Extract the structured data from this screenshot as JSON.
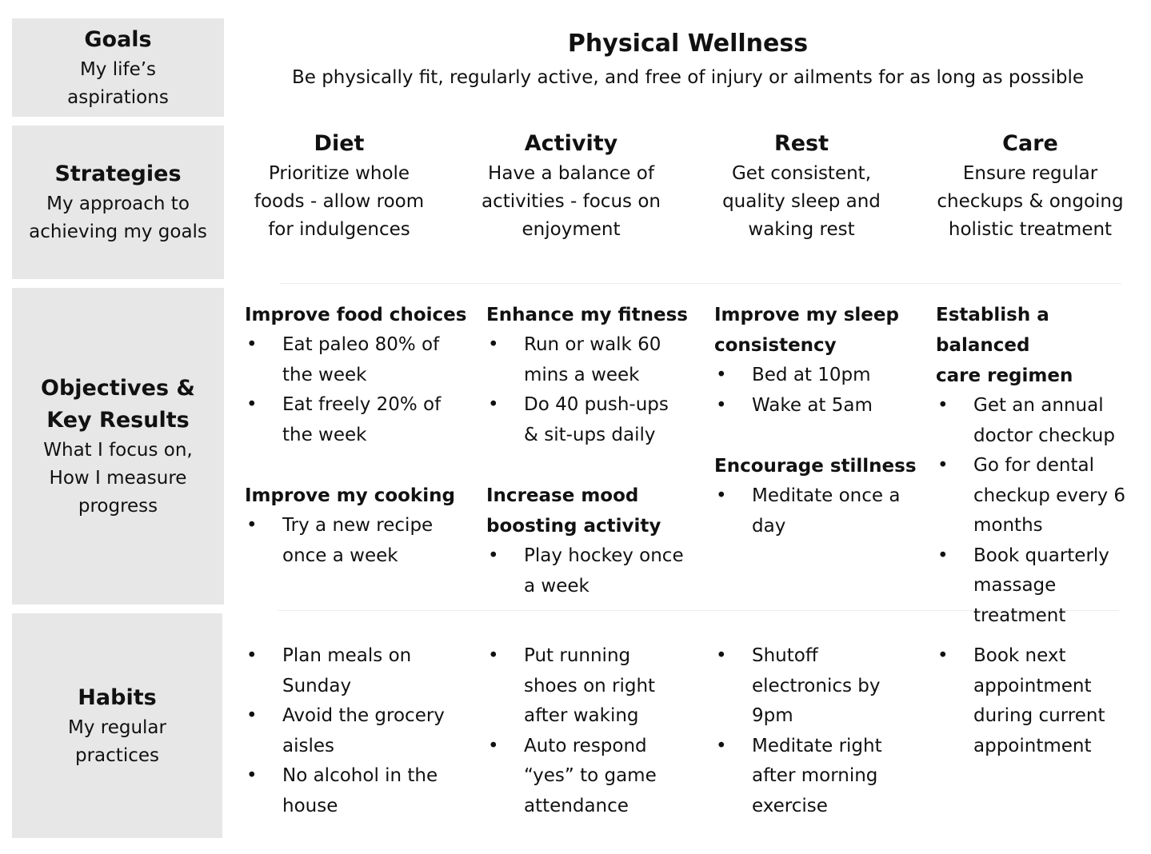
{
  "rows": {
    "goals": {
      "title": "Goals",
      "subtitle_lines": [
        "My life’s",
        "aspirations"
      ]
    },
    "strategies": {
      "title": "Strategies",
      "subtitle_lines": [
        "My approach to",
        "achieving my goals"
      ]
    },
    "okrs": {
      "title_lines": [
        "Objectives &",
        "Key Results"
      ],
      "subtitle_lines": [
        "What I focus on,",
        "How I measure",
        "progress"
      ]
    },
    "habits": {
      "title": "Habits",
      "subtitle_lines": [
        "My regular",
        "practices"
      ]
    }
  },
  "header": {
    "title": "Physical Wellness",
    "subtitle": "Be physically fit, regularly active, and free of injury or ailments for as long as possible"
  },
  "columns": [
    {
      "strategy_title": "Diet",
      "strategy_lines": [
        "Prioritize whole",
        "foods - allow room",
        "for indulgences"
      ],
      "objectives": [
        {
          "title_lines": [
            "Improve food choices"
          ],
          "key_results": [
            [
              "Eat paleo 80% of",
              "the week"
            ],
            [
              "Eat freely 20% of",
              "the week"
            ]
          ]
        },
        {
          "title_lines": [
            "Improve my cooking"
          ],
          "key_results": [
            [
              "Try a new recipe",
              "once a week"
            ]
          ]
        }
      ],
      "habits": [
        [
          "Plan meals on",
          "Sunday"
        ],
        [
          "Avoid the grocery",
          "aisles"
        ],
        [
          "No alcohol in the",
          "house"
        ]
      ]
    },
    {
      "strategy_title": "Activity",
      "strategy_lines": [
        "Have a balance of",
        "activities - focus on",
        "enjoyment"
      ],
      "objectives": [
        {
          "title_lines": [
            "Enhance my fitness"
          ],
          "key_results": [
            [
              "Run or walk 60",
              "mins a week"
            ],
            [
              "Do 40 push-ups",
              "& sit-ups daily"
            ]
          ]
        },
        {
          "title_lines": [
            "Increase mood",
            "boosting activity"
          ],
          "key_results": [
            [
              "Play hockey once",
              "a week"
            ]
          ]
        }
      ],
      "habits": [
        [
          "Put running",
          "shoes on right",
          "after waking"
        ],
        [
          "Auto respond",
          "“yes” to game",
          "attendance"
        ]
      ]
    },
    {
      "strategy_title": "Rest",
      "strategy_lines": [
        "Get consistent,",
        "quality sleep and",
        "waking rest"
      ],
      "objectives": [
        {
          "title_lines": [
            "Improve my sleep",
            "consistency"
          ],
          "key_results": [
            [
              "Bed at 10pm"
            ],
            [
              "Wake at 5am"
            ]
          ]
        },
        {
          "title_lines": [
            "Encourage stillness"
          ],
          "key_results": [
            [
              "Meditate once a",
              "day"
            ]
          ]
        }
      ],
      "habits": [
        [
          "Shutoff",
          "electronics by",
          "9pm"
        ],
        [
          "Meditate right",
          "after morning",
          "exercise"
        ]
      ]
    },
    {
      "strategy_title": "Care",
      "strategy_lines": [
        "Ensure regular",
        "checkups & ongoing",
        "holistic treatment"
      ],
      "objectives": [
        {
          "title_lines": [
            "Establish a balanced",
            "care regimen"
          ],
          "key_results": [
            [
              "Get an annual",
              "doctor checkup"
            ],
            [
              "Go for dental",
              "checkup every 6",
              "months"
            ],
            [
              "Book quarterly",
              "massage",
              "treatment"
            ]
          ]
        }
      ],
      "habits": [
        [
          "Book next",
          "appointment",
          "during current",
          "appointment"
        ]
      ]
    }
  ],
  "bullet_char": "•",
  "colors": {
    "band": "#e7e7e7",
    "text": "#111111",
    "separator": "#ececec"
  }
}
